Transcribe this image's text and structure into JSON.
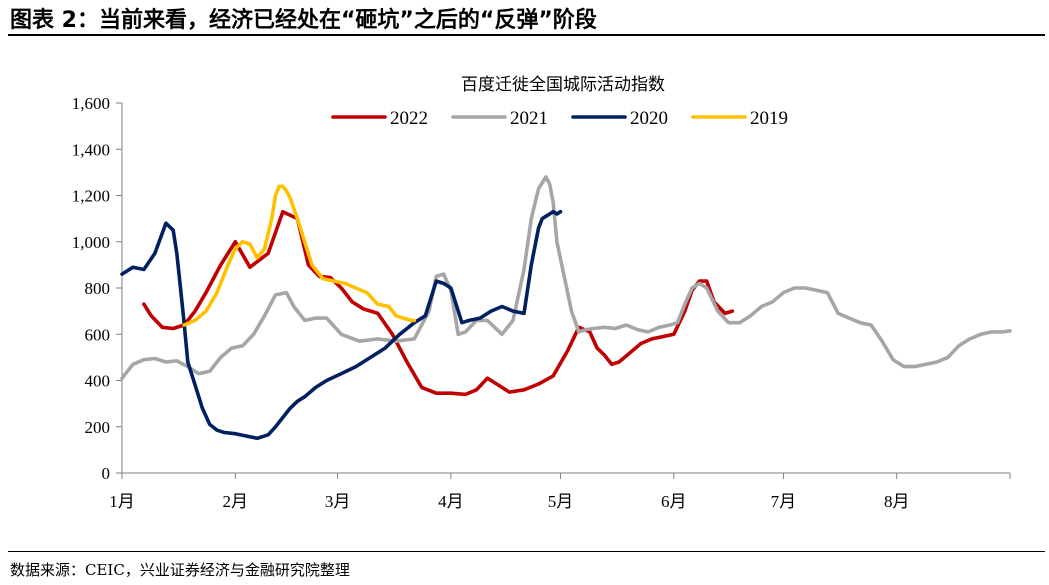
{
  "figure": {
    "title": "图表 2：当前来看，经济已经处在“砸坑”之后的“反弹”阶段",
    "source": "数据来源：CEIC，兴业证券经济与金融研究院整理"
  },
  "chart_data": {
    "type": "line",
    "title": "百度迁徙全国城际活动指数",
    "xlabel": "",
    "ylabel": "",
    "x_unit": "day of year",
    "xlim": [
      0,
      243
    ],
    "ylim": [
      0,
      1600
    ],
    "y_ticks": [
      0,
      200,
      400,
      600,
      800,
      1000,
      1200,
      1400,
      1600
    ],
    "y_tick_labels": [
      "0",
      "200",
      "400",
      "600",
      "800",
      "1,000",
      "1,200",
      "1,400",
      "1,600"
    ],
    "x_ticks": [
      0,
      31,
      59,
      90,
      120,
      151,
      181,
      212
    ],
    "x_tick_labels": [
      "1月",
      "2月",
      "3月",
      "4月",
      "5月",
      "6月",
      "7月",
      "8月"
    ],
    "grid": false,
    "legend_position": "top-center",
    "series": [
      {
        "name": "2022",
        "color": "#C00000",
        "x": [
          6,
          8,
          11,
          14,
          17,
          20,
          23,
          27,
          31,
          35,
          40,
          44,
          48,
          51,
          54,
          57,
          60,
          63,
          66,
          70,
          74,
          78,
          82,
          86,
          90,
          94,
          97,
          100,
          103,
          106,
          110,
          114,
          118,
          122,
          125,
          128,
          130,
          132,
          134,
          136,
          139,
          142,
          145,
          148,
          151,
          154,
          156,
          158,
          160,
          162,
          165,
          167
        ],
        "values": [
          730,
          680,
          630,
          625,
          640,
          700,
          780,
          900,
          1000,
          890,
          950,
          1130,
          1100,
          900,
          850,
          845,
          800,
          740,
          710,
          690,
          600,
          480,
          370,
          345,
          345,
          340,
          360,
          410,
          380,
          350,
          360,
          385,
          420,
          530,
          630,
          610,
          540,
          510,
          470,
          480,
          520,
          560,
          580,
          590,
          600,
          700,
          790,
          830,
          830,
          740,
          690,
          700
        ]
      },
      {
        "name": "2021",
        "color": "#A6A6A6",
        "x": [
          0,
          3,
          6,
          9,
          12,
          15,
          18,
          21,
          24,
          27,
          30,
          33,
          36,
          39,
          42,
          45,
          47,
          50,
          53,
          56,
          60,
          65,
          70,
          75,
          80,
          84,
          86,
          88,
          90,
          92,
          94,
          97,
          100,
          104,
          107,
          110,
          112,
          114,
          116,
          117,
          118,
          119,
          121,
          123,
          125,
          127,
          129,
          132,
          135,
          138,
          141,
          144,
          147,
          150,
          152,
          154,
          156,
          158,
          160,
          163,
          166,
          169,
          172,
          175,
          178,
          181,
          184,
          187,
          190,
          193,
          196,
          199,
          202,
          205,
          208,
          211,
          214,
          217,
          220,
          223,
          226,
          229,
          232,
          235,
          238,
          241,
          243
        ],
        "values": [
          410,
          470,
          490,
          495,
          480,
          485,
          460,
          430,
          440,
          500,
          540,
          550,
          600,
          680,
          770,
          780,
          720,
          660,
          670,
          670,
          600,
          570,
          580,
          570,
          580,
          700,
          850,
          860,
          790,
          600,
          610,
          660,
          660,
          600,
          660,
          880,
          1100,
          1230,
          1280,
          1250,
          1170,
          1000,
          850,
          700,
          610,
          620,
          625,
          630,
          625,
          640,
          620,
          610,
          630,
          640,
          650,
          730,
          800,
          820,
          800,
          700,
          650,
          650,
          680,
          720,
          740,
          780,
          800,
          800,
          790,
          780,
          690,
          670,
          650,
          640,
          570,
          490,
          460,
          460,
          470,
          480,
          500,
          550,
          580,
          600,
          610,
          610,
          615
        ]
      },
      {
        "name": "2020",
        "color": "#002060",
        "x": [
          0,
          3,
          6,
          9,
          12,
          14,
          15,
          16,
          17,
          18,
          20,
          22,
          24,
          26,
          28,
          31,
          34,
          37,
          40,
          42,
          44,
          46,
          48,
          50,
          53,
          56,
          60,
          64,
          68,
          72,
          76,
          80,
          83,
          86,
          88,
          90,
          93,
          95,
          98,
          101,
          104,
          107,
          110,
          112,
          114,
          115,
          116,
          117,
          118,
          119,
          120
        ],
        "values": [
          860,
          890,
          880,
          950,
          1080,
          1050,
          950,
          800,
          650,
          480,
          380,
          280,
          210,
          185,
          175,
          170,
          160,
          150,
          165,
          200,
          240,
          280,
          310,
          330,
          370,
          400,
          430,
          460,
          500,
          540,
          600,
          650,
          680,
          830,
          820,
          800,
          650,
          660,
          670,
          700,
          720,
          700,
          690,
          900,
          1060,
          1100,
          1110,
          1120,
          1130,
          1120,
          1130
        ]
      },
      {
        "name": "2019",
        "color": "#FFC000",
        "x": [
          17,
          20,
          23,
          26,
          29,
          31,
          33,
          35,
          37,
          39,
          41,
          42,
          43,
          44,
          45,
          46,
          48,
          50,
          52,
          55,
          58,
          61,
          64,
          67,
          70,
          73,
          75,
          77,
          79,
          80
        ],
        "values": [
          640,
          660,
          700,
          780,
          900,
          970,
          1000,
          990,
          930,
          970,
          1100,
          1200,
          1240,
          1240,
          1220,
          1190,
          1100,
          1000,
          900,
          840,
          830,
          820,
          800,
          780,
          730,
          720,
          680,
          670,
          660,
          660
        ]
      }
    ]
  }
}
